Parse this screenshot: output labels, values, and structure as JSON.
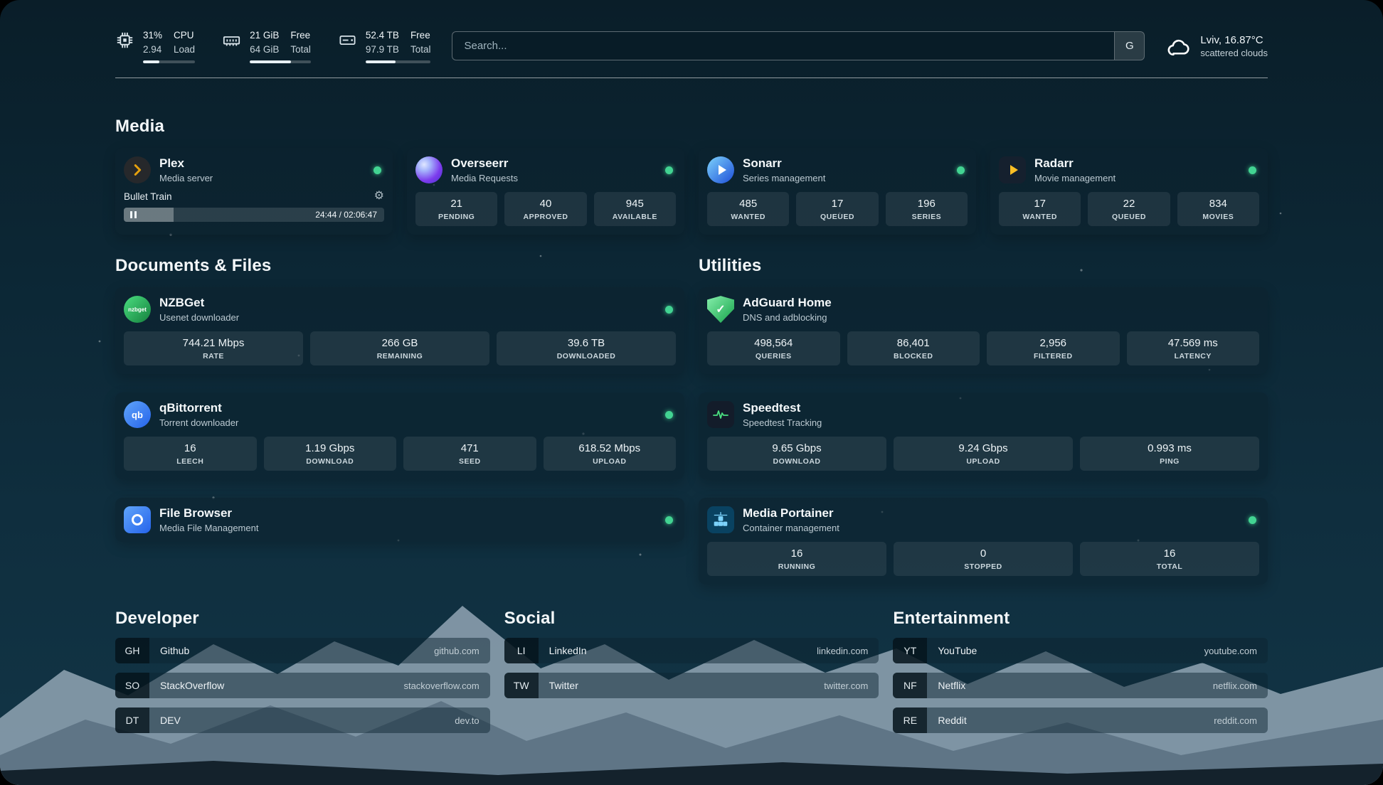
{
  "topbar": {
    "cpu": {
      "value1": "31%",
      "value2": "2.94",
      "label1": "CPU",
      "label2": "Load",
      "progress": 31
    },
    "memory": {
      "value1": "21 GiB",
      "value2": "64 GiB",
      "label1": "Free",
      "label2": "Total",
      "progress": 67
    },
    "disk": {
      "value1": "52.4 TB",
      "value2": "97.9 TB",
      "label1": "Free",
      "label2": "Total",
      "progress": 46
    },
    "search": {
      "placeholder": "Search...",
      "button": "G"
    },
    "weather": {
      "location": "Lviv, 16.87°C",
      "condition": "scattered clouds"
    }
  },
  "media": {
    "title": "Media",
    "plex": {
      "name": "Plex",
      "desc": "Media server",
      "now_playing": "Bullet Train",
      "time": "24:44 / 02:06:47",
      "progress": 19
    },
    "overseerr": {
      "name": "Overseerr",
      "desc": "Media Requests",
      "stats": [
        {
          "value": "21",
          "label": "PENDING"
        },
        {
          "value": "40",
          "label": "APPROVED"
        },
        {
          "value": "945",
          "label": "AVAILABLE"
        }
      ]
    },
    "sonarr": {
      "name": "Sonarr",
      "desc": "Series management",
      "stats": [
        {
          "value": "485",
          "label": "WANTED"
        },
        {
          "value": "17",
          "label": "QUEUED"
        },
        {
          "value": "196",
          "label": "SERIES"
        }
      ]
    },
    "radarr": {
      "name": "Radarr",
      "desc": "Movie management",
      "stats": [
        {
          "value": "17",
          "label": "WANTED"
        },
        {
          "value": "22",
          "label": "QUEUED"
        },
        {
          "value": "834",
          "label": "MOVIES"
        }
      ]
    }
  },
  "documents": {
    "title": "Documents & Files",
    "nzbget": {
      "name": "NZBGet",
      "desc": "Usenet downloader",
      "icon_text": "nzbget",
      "stats": [
        {
          "value": "744.21 Mbps",
          "label": "RATE"
        },
        {
          "value": "266 GB",
          "label": "REMAINING"
        },
        {
          "value": "39.6 TB",
          "label": "DOWNLOADED"
        }
      ]
    },
    "qbittorrent": {
      "name": "qBittorrent",
      "desc": "Torrent downloader",
      "icon_text": "qb",
      "stats": [
        {
          "value": "16",
          "label": "LEECH"
        },
        {
          "value": "1.19 Gbps",
          "label": "DOWNLOAD"
        },
        {
          "value": "471",
          "label": "SEED"
        },
        {
          "value": "618.52 Mbps",
          "label": "UPLOAD"
        }
      ]
    },
    "filebrowser": {
      "name": "File Browser",
      "desc": "Media File Management"
    }
  },
  "utilities": {
    "title": "Utilities",
    "adguard": {
      "name": "AdGuard Home",
      "desc": "DNS and adblocking",
      "stats": [
        {
          "value": "498,564",
          "label": "QUERIES"
        },
        {
          "value": "86,401",
          "label": "BLOCKED"
        },
        {
          "value": "2,956",
          "label": "FILTERED"
        },
        {
          "value": "47.569 ms",
          "label": "LATENCY"
        }
      ]
    },
    "speedtest": {
      "name": "Speedtest",
      "desc": "Speedtest Tracking",
      "stats": [
        {
          "value": "9.65 Gbps",
          "label": "DOWNLOAD"
        },
        {
          "value": "9.24 Gbps",
          "label": "UPLOAD"
        },
        {
          "value": "0.993 ms",
          "label": "PING"
        }
      ]
    },
    "portainer": {
      "name": "Media Portainer",
      "desc": "Container management",
      "stats": [
        {
          "value": "16",
          "label": "RUNNING"
        },
        {
          "value": "0",
          "label": "STOPPED"
        },
        {
          "value": "16",
          "label": "TOTAL"
        }
      ]
    }
  },
  "bookmarks": {
    "developer": {
      "title": "Developer",
      "items": [
        {
          "abbr": "GH",
          "name": "Github",
          "url": "github.com"
        },
        {
          "abbr": "SO",
          "name": "StackOverflow",
          "url": "stackoverflow.com"
        },
        {
          "abbr": "DT",
          "name": "DEV",
          "url": "dev.to"
        }
      ]
    },
    "social": {
      "title": "Social",
      "items": [
        {
          "abbr": "LI",
          "name": "LinkedIn",
          "url": "linkedin.com"
        },
        {
          "abbr": "TW",
          "name": "Twitter",
          "url": "twitter.com"
        }
      ]
    },
    "entertainment": {
      "title": "Entertainment",
      "items": [
        {
          "abbr": "YT",
          "name": "YouTube",
          "url": "youtube.com"
        },
        {
          "abbr": "NF",
          "name": "Netflix",
          "url": "netflix.com"
        },
        {
          "abbr": "RE",
          "name": "Reddit",
          "url": "reddit.com"
        }
      ]
    }
  }
}
